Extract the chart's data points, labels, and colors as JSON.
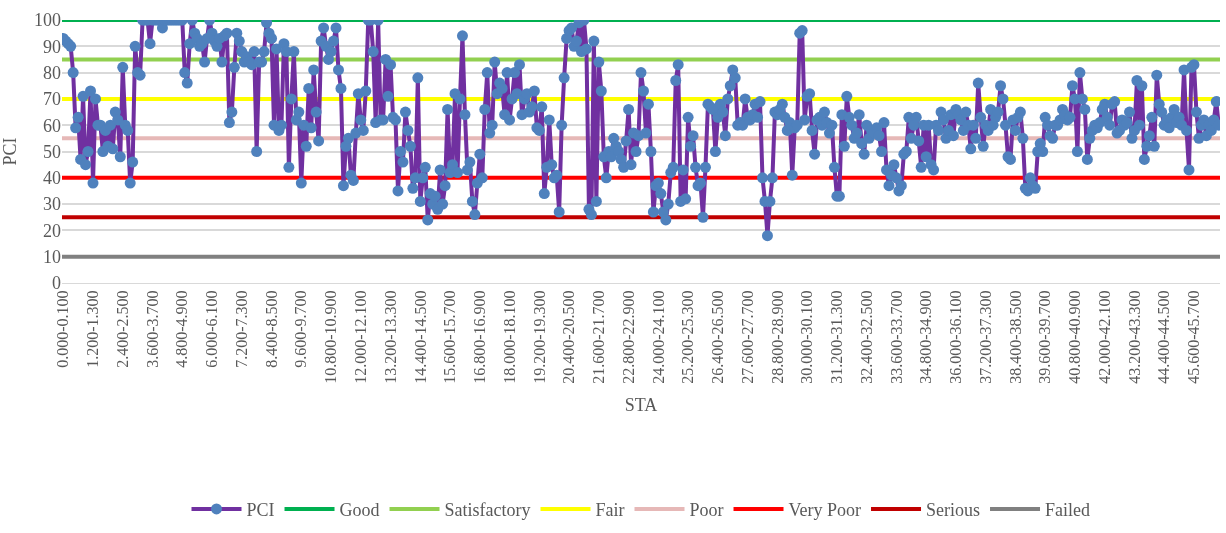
{
  "chart_data": {
    "type": "line",
    "xlabel": "STA",
    "ylabel": "PCI",
    "ylim": [
      0,
      100
    ],
    "yticks": [
      0,
      10,
      20,
      30,
      40,
      50,
      60,
      70,
      80,
      90,
      100
    ],
    "grid": "y",
    "legend": "bottom",
    "marker": "circle",
    "line_style": "solid",
    "categories": [
      "0.000-0.100",
      null,
      null,
      null,
      null,
      null,
      null,
      null,
      null,
      null,
      null,
      null,
      "1.200-1.300",
      null,
      null,
      null,
      null,
      null,
      null,
      null,
      null,
      null,
      null,
      null,
      "2.400-2.500",
      null,
      null,
      null,
      null,
      null,
      null,
      null,
      null,
      null,
      null,
      null,
      "3.600-3.700",
      null,
      null,
      null,
      null,
      null,
      null,
      null,
      null,
      null,
      null,
      null,
      "4.800-4.900",
      null,
      null,
      null,
      null,
      null,
      null,
      null,
      null,
      null,
      null,
      null,
      "6.000-6.100",
      null,
      null,
      null,
      null,
      null,
      null,
      null,
      null,
      null,
      null,
      null,
      "7.200-7.300",
      null,
      null,
      null,
      null,
      null,
      null,
      null,
      null,
      null,
      null,
      null,
      "8.400-8.500",
      null,
      null,
      null,
      null,
      null,
      null,
      null,
      null,
      null,
      null,
      null,
      "9.600-9.700",
      null,
      null,
      null,
      null,
      null,
      null,
      null,
      null,
      null,
      null,
      null,
      "10.800-10.900",
      null,
      null,
      null,
      null,
      null,
      null,
      null,
      null,
      null,
      null,
      null,
      "12.000-12.100",
      null,
      null,
      null,
      null,
      null,
      null,
      null,
      null,
      null,
      null,
      null,
      "13.200-13.300",
      null,
      null,
      null,
      null,
      null,
      null,
      null,
      null,
      null,
      null,
      null,
      "14.400-14.500",
      null,
      null,
      null,
      null,
      null,
      null,
      null,
      null,
      null,
      null,
      null,
      "15.600-15.700",
      null,
      null,
      null,
      null,
      null,
      null,
      null,
      null,
      null,
      null,
      null,
      "16.800-16.900",
      null,
      null,
      null,
      null,
      null,
      null,
      null,
      null,
      null,
      null,
      null,
      "18.000-18.100",
      null,
      null,
      null,
      null,
      null,
      null,
      null,
      null,
      null,
      null,
      null,
      "19.200-19.300",
      null,
      null,
      null,
      null,
      null,
      null,
      null,
      null,
      null,
      null,
      null,
      "20.400-20.500",
      null,
      null,
      null,
      null,
      null,
      null,
      null,
      null,
      null,
      null,
      null,
      "21.600-21.700",
      null,
      null,
      null,
      null,
      null,
      null,
      null,
      null,
      null,
      null,
      null,
      "22.800-22.900",
      null,
      null,
      null,
      null,
      null,
      null,
      null,
      null,
      null,
      null,
      null,
      "24.000-24.100",
      null,
      null,
      null,
      null,
      null,
      null,
      null,
      null,
      null,
      null,
      null,
      "25.200-25.300",
      null,
      null,
      null,
      null,
      null,
      null,
      null,
      null,
      null,
      null,
      null,
      "26.400-26.500",
      null,
      null,
      null,
      null,
      null,
      null,
      null,
      null,
      null,
      null,
      null,
      "27.600-27.700",
      null,
      null,
      null,
      null,
      null,
      null,
      null,
      null,
      null,
      null,
      null,
      "28.800-28.900",
      null,
      null,
      null,
      null,
      null,
      null,
      null,
      null,
      null,
      null,
      null,
      "30.000-30.100",
      null,
      null,
      null,
      null,
      null,
      null,
      null,
      null,
      null,
      null,
      null,
      "31.200-31.300",
      null,
      null,
      null,
      null,
      null,
      null,
      null,
      null,
      null,
      null,
      null,
      "32.400-32.500",
      null,
      null,
      null,
      null,
      null,
      null,
      null,
      null,
      null,
      null,
      null,
      "33.600-33.700",
      null,
      null,
      null,
      null,
      null,
      null,
      null,
      null,
      null,
      null,
      null,
      "34.800-34.900",
      null,
      null,
      null,
      null,
      null,
      null,
      null,
      null,
      null,
      null,
      null,
      "36.000-36.100",
      null,
      null,
      null,
      null,
      null,
      null,
      null,
      null,
      null,
      null,
      null,
      "37.200-37.300",
      null,
      null,
      null,
      null,
      null,
      null,
      null,
      null,
      null,
      null,
      null,
      "38.400-38.500",
      null,
      null,
      null,
      null,
      null,
      null,
      null,
      null,
      null,
      null,
      null,
      "39.600-39.700",
      null,
      null,
      null,
      null,
      null,
      null,
      null,
      null,
      null,
      null,
      null,
      "40.800-40.900",
      null,
      null,
      null,
      null,
      null,
      null,
      null,
      null,
      null,
      null,
      null,
      "42.000-42.100",
      null,
      null,
      null,
      null,
      null,
      null,
      null,
      null,
      null,
      null,
      null,
      "43.200-43.300",
      null,
      null,
      null,
      null,
      null,
      null,
      null,
      null,
      null,
      null,
      null,
      "44.400-44.500",
      null,
      null,
      null,
      null,
      null,
      null,
      null,
      null,
      null,
      null,
      null,
      "45.600-45.700",
      null,
      null,
      null,
      null,
      null,
      null,
      null,
      null,
      null,
      null
    ],
    "series": [
      {
        "name": "PCI",
        "color": "#7030a0",
        "colors": [
          "#4f81bd",
          "#4f81bd",
          "#4f81bd",
          "#4f81bd",
          "#4f81bd",
          "#4f81bd",
          "#4f81bd",
          "#4f81bd",
          "#4f81bd",
          "#4f81bd",
          "#4f81bd",
          "#4f81bd",
          "#4f81bd",
          "#4f81bd",
          "#4f81bd",
          "#4f81bd",
          "#4f81bd",
          "#4f81bd",
          "#4f81bd",
          "#4f81bd",
          "#4f81bd",
          "#4f81bd",
          "#4f81bd",
          "#4f81bd",
          "#4f81bd",
          "#4f81bd",
          "#4f81bd",
          "#4f81bd",
          "#4f81bd",
          "#4f81bd",
          "#4f81bd",
          "#4f81bd",
          "#4f81bd",
          "#4f81bd",
          "#4f81bd",
          "#4f81bd",
          "#4f81bd",
          "#4f81bd",
          "#4f81bd",
          "#4f81bd",
          "#4f81bd",
          "#4f81bd",
          "#4f81bd",
          "#4f81bd",
          "#4f81bd",
          "#4f81bd",
          "#4f81bd",
          "#4f81bd",
          "#4f81bd",
          "#4f81bd",
          "#4f81bd",
          "#4f81bd",
          "#4f81bd",
          "#4f81bd",
          "#4f81bd",
          "#4f81bd",
          "#4f81bd",
          "#4f81bd",
          "#4f81bd",
          "#4f81bd",
          "#4f81bd",
          "#4f81bd",
          "#4f81bd",
          "#4f81bd",
          "#4f81bd",
          "#4f81bd",
          "#4f81bd",
          "#4f81bd",
          "#4f81bd",
          "#4f81bd",
          "#4f81bd",
          "#4f81bd",
          "#4f81bd",
          "#4f81bd",
          "#4f81bd",
          "#4f81bd",
          "#4f81bd",
          "#4f81bd",
          "#4f81bd",
          "#4f81bd",
          "#4f81bd",
          "#4f81bd",
          "#4f81bd",
          "#4f81bd",
          "#4f81bd",
          "#4f81bd",
          "#4f81bd",
          "#4f81bd",
          "#4f81bd",
          "#4f81bd",
          "#4f81bd",
          "#4f81bd",
          "#4f81bd",
          "#4f81bd",
          "#4f81bd",
          "#4f81bd",
          "#4f81bd",
          "#4f81bd",
          "#4f81bd",
          "#4f81bd",
          "#4f81bd",
          "#4f81bd",
          "#4f81bd",
          "#4f81bd",
          "#4f81bd",
          "#4f81bd",
          "#4f81bd",
          "#4f81bd",
          "#4f81bd",
          "#4f81bd",
          "#4f81bd",
          "#4f81bd",
          "#4f81bd",
          "#4f81bd",
          "#4f81bd",
          "#4f81bd",
          "#4f81bd",
          "#4f81bd",
          "#4f81bd",
          "#4f81bd",
          "#4f81bd",
          "#4f81bd",
          "#4f81bd",
          "#4f81bd",
          "#4f81bd",
          "#4f81bd",
          "#4f81bd",
          "#4f81bd",
          "#4f81bd",
          "#4f81bd",
          "#4f81bd",
          "#4f81bd",
          "#4f81bd",
          "#4f81bd",
          "#4f81bd",
          "#4f81bd",
          "#4f81bd",
          "#4f81bd",
          "#4f81bd",
          "#4f81bd",
          "#4f81bd",
          "#4f81bd",
          "#4f81bd",
          "#4f81bd",
          "#4f81bd",
          "#4f81bd",
          "#4f81bd",
          "#4f81bd",
          "#4f81bd",
          "#4f81bd",
          "#4f81bd",
          "#4f81bd",
          "#4f81bd",
          "#4f81bd",
          "#4f81bd",
          "#4f81bd",
          "#4f81bd",
          "#4f81bd",
          "#4f81bd",
          "#4f81bd",
          "#4f81bd",
          "#4f81bd",
          "#4f81bd",
          "#4f81bd",
          "#4f81bd",
          "#4f81bd",
          "#4f81bd",
          "#4f81bd",
          "#4f81bd",
          "#4f81bd",
          "#4f81bd",
          "#4f81bd",
          "#4f81bd",
          "#4f81bd",
          "#4f81bd",
          "#4f81bd",
          "#4f81bd",
          "#4f81bd",
          "#4f81bd",
          "#4f81bd",
          "#4f81bd",
          "#4f81bd",
          "#4f81bd",
          "#4f81bd",
          "#4f81bd",
          "#4f81bd",
          "#4f81bd",
          "#4f81bd",
          "#4f81bd",
          "#4f81bd",
          "#4f81bd",
          "#4f81bd",
          "#4f81bd",
          "#4f81bd",
          "#4f81bd",
          "#4f81bd",
          "#4f81bd",
          "#4f81bd",
          "#4f81bd",
          "#4f81bd",
          "#4f81bd",
          "#4f81bd",
          "#4f81bd",
          "#4f81bd",
          "#4f81bd",
          "#4f81bd",
          "#4f81bd",
          "#4f81bd",
          "#4f81bd",
          "#4f81bd",
          "#4f81bd",
          "#4f81bd",
          "#4f81bd",
          "#4f81bd",
          "#4f81bd",
          "#4f81bd",
          "#4f81bd",
          "#4f81bd",
          "#4f81bd",
          "#4f81bd",
          "#4f81bd",
          "#4f81bd",
          "#4f81bd",
          "#4f81bd",
          "#4f81bd",
          "#4f81bd",
          "#4f81bd",
          "#4f81bd",
          "#4f81bd",
          "#4f81bd",
          "#4f81bd",
          "#4f81bd",
          "#4f81bd",
          "#4f81bd",
          "#4f81bd",
          "#4f81bd",
          "#4f81bd",
          "#4f81bd",
          "#4f81bd",
          "#4f81bd",
          "#4f81bd",
          "#4f81bd",
          "#4f81bd",
          "#4f81bd",
          "#4f81bd",
          "#4f81bd",
          "#4f81bd",
          "#4f81bd",
          "#4f81bd",
          "#4f81bd",
          "#4f81bd",
          "#4f81bd",
          "#4f81bd",
          "#4f81bd",
          "#4f81bd",
          "#4f81bd",
          "#4f81bd",
          "#4f81bd",
          "#4f81bd",
          "#4f81bd",
          "#4f81bd",
          "#4f81bd",
          "#4f81bd",
          "#4f81bd",
          "#4f81bd",
          "#4f81bd",
          "#4f81bd",
          "#4f81bd",
          "#4f81bd",
          "#4f81bd",
          "#4f81bd",
          "#4f81bd",
          "#4f81bd",
          "#4f81bd",
          "#4f81bd",
          "#4f81bd",
          "#4f81bd",
          "#4f81bd",
          "#4f81bd",
          "#4f81bd",
          "#4f81bd",
          "#4f81bd",
          "#4f81bd",
          "#4f81bd",
          "#4f81bd",
          "#4f81bd",
          "#4f81bd",
          "#4f81bd",
          "#4f81bd",
          "#4f81bd",
          "#4f81bd",
          "#4f81bd",
          "#4f81bd",
          "#4f81bd",
          "#4f81bd",
          "#4f81bd",
          "#4f81bd",
          "#4f81bd",
          "#4f81bd",
          "#4f81bd",
          "#4f81bd",
          "#4f81bd",
          "#4f81bd",
          "#4f81bd",
          "#4f81bd",
          "#4f81bd",
          "#4f81bd",
          "#4f81bd",
          "#4f81bd",
          "#4f81bd",
          "#4f81bd",
          "#4f81bd",
          "#4f81bd",
          "#4f81bd",
          "#4f81bd",
          "#4f81bd",
          "#4f81bd",
          "#4f81bd",
          "#4f81bd",
          "#4f81bd",
          "#4f81bd",
          "#4f81bd",
          "#4f81bd",
          "#4f81bd",
          "#4f81bd",
          "#4f81bd",
          "#4f81bd",
          "#4f81bd",
          "#4f81bd",
          "#4f81bd",
          "#4f81bd",
          "#4f81bd",
          "#4f81bd",
          "#4f81bd",
          "#4f81bd",
          "#4f81bd",
          "#4f81bd",
          "#4f81bd",
          "#4f81bd",
          "#4f81bd",
          "#4f81bd",
          "#4f81bd",
          "#4f81bd",
          "#4f81bd",
          "#4f81bd",
          "#4f81bd",
          "#4f81bd",
          "#4f81bd",
          "#4f81bd",
          "#4f81bd",
          "#4f81bd",
          "#4f81bd",
          "#4f81bd",
          "#4f81bd",
          "#4f81bd",
          "#4f81bd",
          "#4f81bd",
          "#4f81bd",
          "#4f81bd",
          "#4f81bd",
          "#4f81bd",
          "#4f81bd",
          "#4f81bd",
          "#4f81bd",
          "#4f81bd",
          "#4f81bd",
          "#4f81bd",
          "#4f81bd",
          "#4f81bd",
          "#4f81bd",
          "#4f81bd",
          "#4f81bd",
          "#4f81bd",
          "#4f81bd",
          "#4f81bd",
          "#4f81bd",
          "#4f81bd",
          "#4f81bd",
          "#4f81bd",
          "#4f81bd",
          "#4f81bd",
          "#4f81bd",
          "#4f81bd",
          "#4f81bd",
          "#4f81bd",
          "#4f81bd",
          "#4f81bd",
          "#4f81bd",
          "#4f81bd",
          "#4f81bd",
          "#4f81bd",
          "#4f81bd",
          "#4f81bd",
          "#4f81bd",
          "#4f81bd",
          "#4f81bd",
          "#4f81bd",
          "#4f81bd",
          "#4f81bd",
          "#4f81bd",
          "#4f81bd",
          "#4f81bd",
          "#4f81bd",
          "#4f81bd",
          "#4f81bd",
          "#4f81bd",
          "#4f81bd",
          "#4f81bd",
          "#4f81bd",
          "#4f81bd",
          "#4f81bd",
          "#4f81bd",
          "#4f81bd",
          "#4f81bd",
          "#4f81bd",
          "#4f81bd",
          "#4f81bd",
          "#4f81bd",
          "#4f81bd",
          "#4f81bd",
          "#4f81bd",
          "#4f81bd",
          "#4f81bd",
          "#4f81bd",
          "#4f81bd",
          "#4f81bd",
          "#4f81bd",
          "#4f81bd",
          "#4f81bd",
          "#4f81bd",
          "#4f81bd",
          "#4f81bd",
          "#4f81bd",
          "#4f81bd",
          "#4f81bd",
          "#4f81bd",
          "#4f81bd",
          "#4f81bd",
          "#4f81bd",
          "#4f81bd",
          "#4f81bd",
          "#4f81bd",
          "#4f81bd",
          "#4f81bd",
          "#4f81bd",
          "#4f81bd",
          "#4f81bd",
          "#4f81bd",
          "#4f81bd",
          "#4f81bd",
          "#4f81bd",
          "#4f81bd",
          "#4f81bd",
          "#4f81bd",
          "#4f81bd",
          "#4f81bd",
          "#4f81bd",
          "#4f81bd",
          "#4f81bd",
          "#4f81bd",
          "#4f81bd",
          "#4f81bd",
          "#4f81bd",
          "#4f81bd",
          "#4f81bd",
          "#4f81bd",
          "#4f81bd"
        ],
        "values": [
          93,
          92,
          91,
          90,
          80,
          59,
          63,
          47,
          71,
          45,
          50,
          73,
          38,
          70,
          60,
          60,
          50,
          58,
          52,
          60,
          51,
          65,
          62,
          48,
          82,
          60,
          58,
          38,
          46,
          90,
          80,
          79,
          100,
          100,
          100,
          91,
          100,
          100,
          100,
          100,
          97,
          100,
          100,
          100,
          100,
          100,
          100,
          100,
          100,
          80,
          76,
          91,
          100,
          95,
          93,
          90,
          91,
          84,
          93,
          100,
          95,
          92,
          90,
          93,
          84,
          94,
          95,
          61,
          65,
          82,
          95,
          92,
          88,
          84,
          86,
          84,
          83,
          88,
          50,
          84,
          84,
          88,
          99,
          95,
          93,
          60,
          89,
          58,
          60,
          91,
          88,
          44,
          70,
          88,
          62,
          65,
          38,
          60,
          52,
          74,
          59,
          81,
          65,
          54,
          92,
          97,
          90,
          85,
          88,
          92,
          97,
          81,
          74,
          37,
          52,
          55,
          41,
          39,
          57,
          72,
          62,
          58,
          73,
          100,
          100,
          88,
          61,
          100,
          62,
          62,
          85,
          71,
          83,
          63,
          62,
          35,
          50,
          46,
          65,
          58,
          52,
          36,
          40,
          78,
          31,
          40,
          44,
          24,
          34,
          30,
          33,
          28,
          43,
          30,
          37,
          66,
          42,
          45,
          72,
          42,
          70,
          94,
          64,
          43,
          46,
          31,
          26,
          38,
          49,
          40,
          66,
          80,
          57,
          60,
          84,
          72,
          76,
          74,
          64,
          80,
          62,
          70,
          80,
          72,
          83,
          64,
          70,
          72,
          65,
          67,
          73,
          59,
          58,
          67,
          34,
          44,
          62,
          45,
          40,
          41,
          27,
          60,
          78,
          93,
          96,
          97,
          90,
          92,
          99,
          88,
          100,
          89,
          28,
          26,
          92,
          31,
          84,
          73,
          48,
          40,
          50,
          48,
          55,
          52,
          50,
          47,
          44,
          54,
          66,
          45,
          57,
          50,
          56,
          80,
          73,
          57,
          68,
          50,
          27,
          37,
          38,
          34,
          27,
          24,
          30,
          42,
          44,
          77,
          83,
          31,
          43,
          32,
          63,
          52,
          56,
          44,
          37,
          38,
          25,
          44,
          68,
          67,
          66,
          50,
          63,
          68,
          65,
          56,
          70,
          75,
          81,
          78,
          60,
          61,
          60,
          70,
          63,
          62,
          64,
          68,
          63,
          69,
          40,
          31,
          18,
          31,
          40,
          65,
          64,
          66,
          68,
          63,
          58,
          61,
          41,
          59,
          60,
          95,
          96,
          62,
          71,
          72,
          58,
          49,
          62,
          63,
          60,
          65,
          61,
          57,
          60,
          44,
          33,
          33,
          64,
          52,
          71,
          63,
          60,
          55,
          57,
          64,
          53,
          49,
          60,
          55,
          58,
          57,
          59,
          56,
          50,
          61,
          43,
          37,
          41,
          45,
          40,
          35,
          37,
          49,
          50,
          63,
          55,
          60,
          63,
          54,
          44,
          60,
          48,
          60,
          45,
          43,
          60,
          58,
          65,
          62,
          55,
          58,
          64,
          56,
          66,
          64,
          62,
          58,
          65,
          60,
          51,
          60,
          55,
          76,
          63,
          52,
          60,
          58,
          66,
          60,
          63,
          65,
          75,
          70,
          60,
          48,
          47,
          62,
          58,
          63,
          65,
          55,
          36,
          35,
          40,
          37,
          36,
          50,
          53,
          50,
          63,
          60,
          56,
          55,
          60,
          60,
          62,
          66,
          64,
          62,
          63,
          75,
          70,
          50,
          80,
          70,
          66,
          47,
          55,
          58,
          60,
          59,
          61,
          66,
          68,
          63,
          60,
          68,
          69,
          57,
          58,
          62,
          60,
          61,
          65,
          55,
          58,
          77,
          60,
          75,
          47,
          52,
          56,
          63,
          52,
          79,
          68,
          65,
          60,
          62,
          59,
          63,
          66,
          61,
          63,
          60,
          81,
          58,
          43,
          82,
          83,
          65,
          55,
          60,
          62,
          56,
          60,
          58,
          62,
          69,
          60
        ]
      }
    ],
    "ref_lines": [
      {
        "axis": "y",
        "value": 100,
        "label": "Good",
        "color": "#00b050"
      },
      {
        "axis": "y",
        "value": 85,
        "label": "Satisfactory",
        "color": "#92d050"
      },
      {
        "axis": "y",
        "value": 70,
        "label": "Fair",
        "color": "#ffff00"
      },
      {
        "axis": "y",
        "value": 55,
        "label": "Poor",
        "color": "#e6b8b7"
      },
      {
        "axis": "y",
        "value": 40,
        "label": "Very Poor",
        "color": "#ff0000"
      },
      {
        "axis": "y",
        "value": 25,
        "label": "Serious",
        "color": "#c00000"
      },
      {
        "axis": "y",
        "value": 10,
        "label": "Failed",
        "color": "#808080"
      }
    ]
  }
}
